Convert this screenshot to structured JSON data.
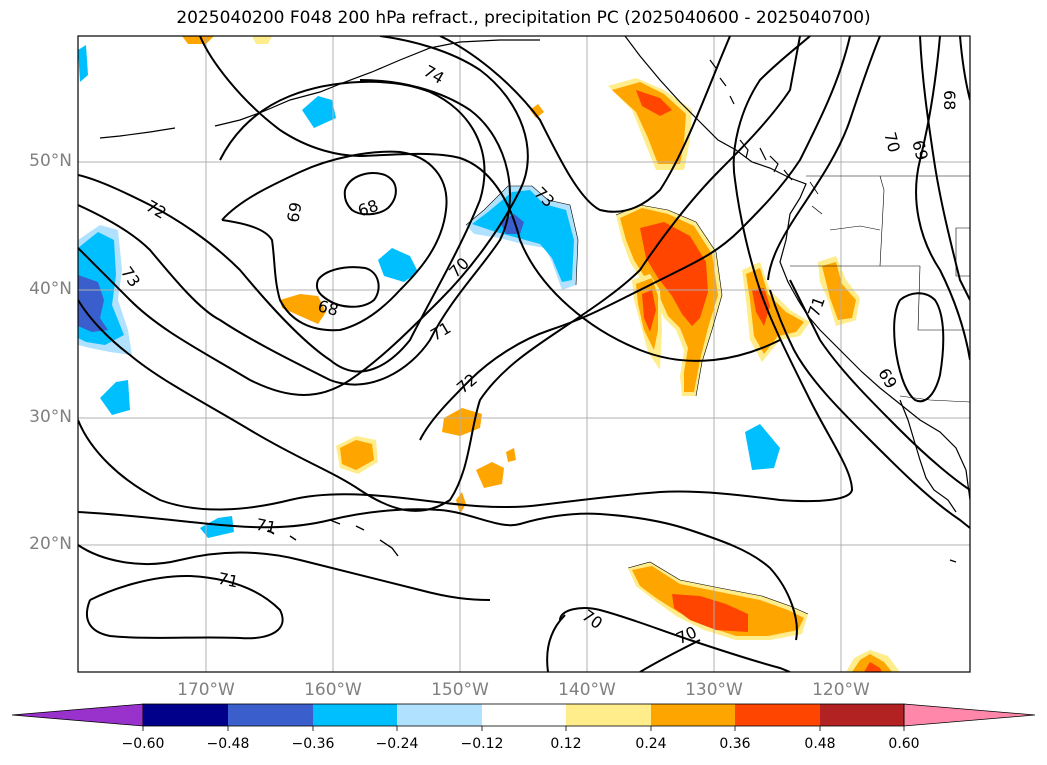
{
  "title": "2025040200 F048 200 hPa refract., precipitation PC (2025040600 - 2025040700)",
  "map": {
    "lat_labels": [
      "50°N",
      "40°N",
      "30°N",
      "20°N"
    ],
    "lon_labels": [
      "170°W",
      "160°W",
      "150°W",
      "140°W",
      "130°W",
      "120°W"
    ],
    "contour_labels": [
      "74",
      "68",
      "69",
      "72",
      "73",
      "73",
      "70",
      "69",
      "70",
      "68",
      "71",
      "71",
      "72",
      "71",
      "71",
      "69",
      "70",
      "70"
    ]
  },
  "colorbar": {
    "ticks": [
      "−0.60",
      "−0.48",
      "−0.36",
      "−0.24",
      "−0.12",
      "0.12",
      "0.24",
      "0.36",
      "0.48",
      "0.60"
    ],
    "colors": [
      "#9932cc",
      "#00008b",
      "#3a5fcd",
      "#00bfff",
      "#b0e2ff",
      "#ffffff",
      "#ffec8b",
      "#ffa500",
      "#ff4500",
      "#b22222",
      "#ff88aa"
    ]
  }
}
